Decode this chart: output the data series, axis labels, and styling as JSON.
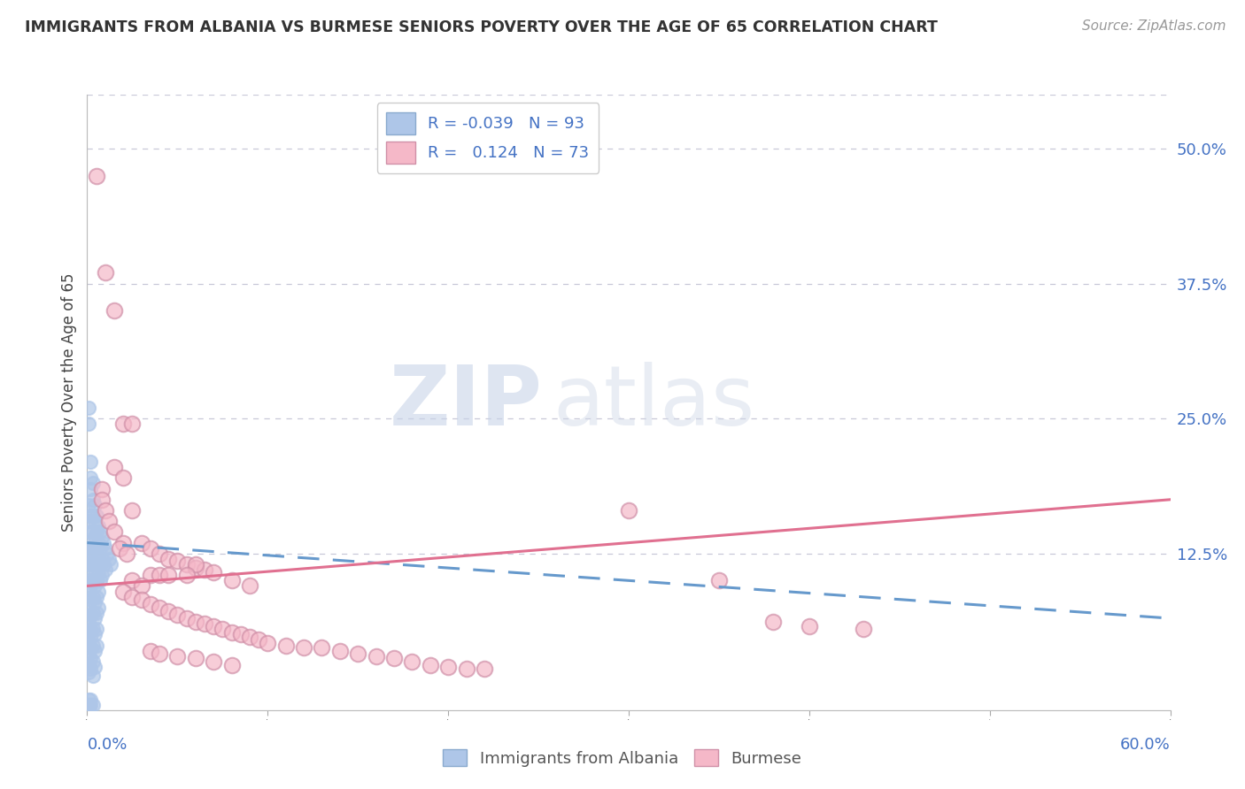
{
  "title": "IMMIGRANTS FROM ALBANIA VS BURMESE SENIORS POVERTY OVER THE AGE OF 65 CORRELATION CHART",
  "source": "Source: ZipAtlas.com",
  "ylabel": "Seniors Poverty Over the Age of 65",
  "xlim": [
    0.0,
    0.6
  ],
  "ylim": [
    -0.02,
    0.55
  ],
  "yticks_right": [
    0.0,
    0.125,
    0.25,
    0.375,
    0.5
  ],
  "ytick_right_labels": [
    "",
    "12.5%",
    "25.0%",
    "37.5%",
    "50.0%"
  ],
  "legend_R_albania": "-0.039",
  "legend_N_albania": "93",
  "legend_R_burmese": "0.124",
  "legend_N_burmese": "73",
  "albania_color": "#aec6e8",
  "burmese_color": "#f5b8c8",
  "trend_albania_color": "#6699cc",
  "trend_burmese_color": "#e07090",
  "background_color": "#ffffff",
  "grid_color": "#c8c8d8",
  "watermark_zip": "ZIP",
  "watermark_atlas": "atlas",
  "albania_points": [
    [
      0.001,
      0.26
    ],
    [
      0.001,
      0.245
    ],
    [
      0.002,
      0.195
    ],
    [
      0.002,
      0.21
    ],
    [
      0.002,
      0.185
    ],
    [
      0.001,
      0.17
    ],
    [
      0.002,
      0.16
    ],
    [
      0.001,
      0.155
    ],
    [
      0.002,
      0.145
    ],
    [
      0.001,
      0.135
    ],
    [
      0.001,
      0.13
    ],
    [
      0.001,
      0.125
    ],
    [
      0.002,
      0.12
    ],
    [
      0.001,
      0.115
    ],
    [
      0.002,
      0.105
    ],
    [
      0.001,
      0.1
    ],
    [
      0.002,
      0.095
    ],
    [
      0.001,
      0.088
    ],
    [
      0.002,
      0.082
    ],
    [
      0.001,
      0.075
    ],
    [
      0.002,
      0.068
    ],
    [
      0.001,
      0.062
    ],
    [
      0.002,
      0.055
    ],
    [
      0.001,
      0.05
    ],
    [
      0.002,
      0.048
    ],
    [
      0.001,
      0.042
    ],
    [
      0.002,
      0.038
    ],
    [
      0.001,
      0.032
    ],
    [
      0.002,
      0.028
    ],
    [
      0.001,
      0.022
    ],
    [
      0.002,
      0.018
    ],
    [
      0.001,
      0.015
    ],
    [
      0.003,
      0.19
    ],
    [
      0.003,
      0.175
    ],
    [
      0.003,
      0.16
    ],
    [
      0.003,
      0.145
    ],
    [
      0.003,
      0.13
    ],
    [
      0.003,
      0.115
    ],
    [
      0.003,
      0.1
    ],
    [
      0.003,
      0.085
    ],
    [
      0.003,
      0.07
    ],
    [
      0.003,
      0.055
    ],
    [
      0.003,
      0.04
    ],
    [
      0.003,
      0.025
    ],
    [
      0.003,
      0.012
    ],
    [
      0.004,
      0.17
    ],
    [
      0.004,
      0.155
    ],
    [
      0.004,
      0.14
    ],
    [
      0.004,
      0.125
    ],
    [
      0.004,
      0.11
    ],
    [
      0.004,
      0.095
    ],
    [
      0.004,
      0.08
    ],
    [
      0.004,
      0.065
    ],
    [
      0.004,
      0.05
    ],
    [
      0.004,
      0.035
    ],
    [
      0.004,
      0.02
    ],
    [
      0.005,
      0.16
    ],
    [
      0.005,
      0.145
    ],
    [
      0.005,
      0.13
    ],
    [
      0.005,
      0.115
    ],
    [
      0.005,
      0.1
    ],
    [
      0.005,
      0.085
    ],
    [
      0.005,
      0.07
    ],
    [
      0.005,
      0.055
    ],
    [
      0.005,
      0.04
    ],
    [
      0.006,
      0.15
    ],
    [
      0.006,
      0.135
    ],
    [
      0.006,
      0.12
    ],
    [
      0.006,
      0.105
    ],
    [
      0.006,
      0.09
    ],
    [
      0.006,
      0.075
    ],
    [
      0.007,
      0.145
    ],
    [
      0.007,
      0.13
    ],
    [
      0.007,
      0.115
    ],
    [
      0.007,
      0.1
    ],
    [
      0.008,
      0.14
    ],
    [
      0.008,
      0.12
    ],
    [
      0.008,
      0.105
    ],
    [
      0.009,
      0.135
    ],
    [
      0.009,
      0.115
    ],
    [
      0.01,
      0.13
    ],
    [
      0.01,
      0.11
    ],
    [
      0.011,
      0.125
    ],
    [
      0.012,
      0.12
    ],
    [
      0.013,
      0.115
    ],
    [
      0.001,
      -0.01
    ],
    [
      0.001,
      -0.015
    ],
    [
      0.002,
      -0.01
    ],
    [
      0.002,
      -0.015
    ],
    [
      0.003,
      -0.015
    ],
    [
      0.001,
      -0.018
    ]
  ],
  "burmese_points": [
    [
      0.005,
      0.475
    ],
    [
      0.01,
      0.385
    ],
    [
      0.015,
      0.35
    ],
    [
      0.02,
      0.245
    ],
    [
      0.025,
      0.245
    ],
    [
      0.015,
      0.205
    ],
    [
      0.02,
      0.195
    ],
    [
      0.008,
      0.185
    ],
    [
      0.008,
      0.175
    ],
    [
      0.01,
      0.165
    ],
    [
      0.025,
      0.165
    ],
    [
      0.012,
      0.155
    ],
    [
      0.015,
      0.145
    ],
    [
      0.02,
      0.135
    ],
    [
      0.018,
      0.13
    ],
    [
      0.022,
      0.125
    ],
    [
      0.03,
      0.135
    ],
    [
      0.035,
      0.13
    ],
    [
      0.04,
      0.125
    ],
    [
      0.045,
      0.12
    ],
    [
      0.05,
      0.118
    ],
    [
      0.055,
      0.115
    ],
    [
      0.06,
      0.112
    ],
    [
      0.065,
      0.11
    ],
    [
      0.035,
      0.105
    ],
    [
      0.04,
      0.105
    ],
    [
      0.045,
      0.105
    ],
    [
      0.06,
      0.115
    ],
    [
      0.025,
      0.1
    ],
    [
      0.03,
      0.095
    ],
    [
      0.055,
      0.105
    ],
    [
      0.07,
      0.108
    ],
    [
      0.08,
      0.1
    ],
    [
      0.09,
      0.095
    ],
    [
      0.02,
      0.09
    ],
    [
      0.025,
      0.085
    ],
    [
      0.03,
      0.082
    ],
    [
      0.035,
      0.078
    ],
    [
      0.04,
      0.075
    ],
    [
      0.045,
      0.072
    ],
    [
      0.05,
      0.068
    ],
    [
      0.055,
      0.065
    ],
    [
      0.06,
      0.062
    ],
    [
      0.065,
      0.06
    ],
    [
      0.07,
      0.058
    ],
    [
      0.075,
      0.055
    ],
    [
      0.08,
      0.052
    ],
    [
      0.085,
      0.05
    ],
    [
      0.09,
      0.048
    ],
    [
      0.095,
      0.045
    ],
    [
      0.1,
      0.042
    ],
    [
      0.11,
      0.04
    ],
    [
      0.12,
      0.038
    ],
    [
      0.13,
      0.038
    ],
    [
      0.14,
      0.035
    ],
    [
      0.15,
      0.032
    ],
    [
      0.16,
      0.03
    ],
    [
      0.17,
      0.028
    ],
    [
      0.18,
      0.025
    ],
    [
      0.19,
      0.022
    ],
    [
      0.2,
      0.02
    ],
    [
      0.21,
      0.018
    ],
    [
      0.22,
      0.018
    ],
    [
      0.035,
      0.035
    ],
    [
      0.04,
      0.032
    ],
    [
      0.05,
      0.03
    ],
    [
      0.06,
      0.028
    ],
    [
      0.07,
      0.025
    ],
    [
      0.08,
      0.022
    ],
    [
      0.3,
      0.165
    ],
    [
      0.35,
      0.1
    ],
    [
      0.38,
      0.062
    ],
    [
      0.4,
      0.058
    ],
    [
      0.43,
      0.055
    ]
  ],
  "alb_trend_x": [
    0.0,
    0.6
  ],
  "alb_trend_y": [
    0.135,
    0.065
  ],
  "bur_trend_x": [
    0.0,
    0.6
  ],
  "bur_trend_y": [
    0.095,
    0.175
  ]
}
